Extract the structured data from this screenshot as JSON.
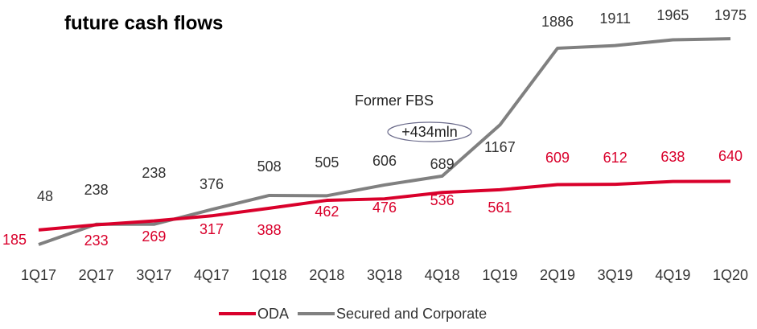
{
  "chart_data": {
    "type": "line",
    "title": "future cash flows",
    "categories": [
      "1Q17",
      "2Q17",
      "3Q17",
      "4Q17",
      "1Q18",
      "2Q18",
      "3Q18",
      "4Q18",
      "1Q19",
      "2Q19",
      "3Q19",
      "4Q19",
      "1Q20"
    ],
    "series": [
      {
        "name": "ODA",
        "color": "#d9002b",
        "values": [
          185,
          233,
          269,
          317,
          388,
          462,
          476,
          536,
          561,
          609,
          612,
          638,
          640
        ]
      },
      {
        "name": "Secured and Corporate",
        "color": "#808080",
        "values": [
          48,
          238,
          238,
          376,
          508,
          505,
          606,
          689,
          1167,
          1886,
          1911,
          1965,
          1975
        ]
      }
    ],
    "ylim": [
      0,
      2000
    ],
    "annotations": [
      "Former FBS",
      "+434mln"
    ]
  }
}
